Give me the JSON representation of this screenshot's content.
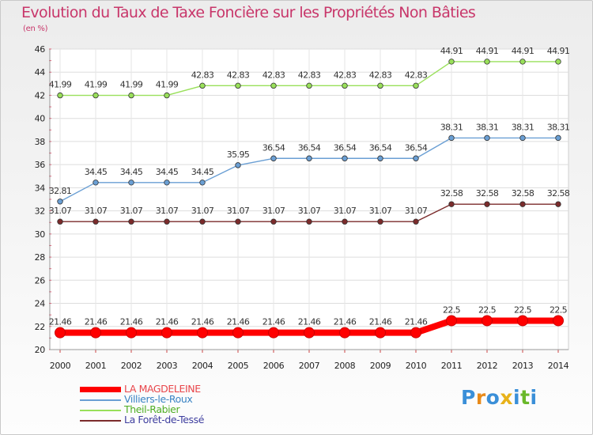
{
  "chart_data": {
    "type": "line",
    "title": "Evolution du Taux de Taxe Foncière sur les Propriétés Non Bâties",
    "ylabel": "(en %)",
    "xlabel": "",
    "x": [
      "2000",
      "2001",
      "2002",
      "2003",
      "2004",
      "2005",
      "2006",
      "2007",
      "2008",
      "2009",
      "2010",
      "2011",
      "2012",
      "2013",
      "2014"
    ],
    "ylim": [
      20,
      46
    ],
    "yticks": [
      20,
      22,
      24,
      26,
      28,
      30,
      32,
      34,
      36,
      38,
      40,
      42,
      44,
      46
    ],
    "grid": true,
    "series": [
      {
        "name": "LA MAGDELEINE",
        "color": "#ff0000",
        "values": [
          21.46,
          21.46,
          21.46,
          21.46,
          21.46,
          21.46,
          21.46,
          21.46,
          21.46,
          21.46,
          21.46,
          22.5,
          22.5,
          22.5,
          22.5
        ],
        "labels": [
          "21.46",
          "21.46",
          "21.46",
          "21.46",
          "21.46",
          "21.46",
          "21.46",
          "21.46",
          "21.46",
          "21.46",
          "21.46",
          "22.5",
          "22.5",
          "22.5",
          "22.5"
        ]
      },
      {
        "name": "Villiers-le-Roux",
        "color": "#6a9fd4",
        "values": [
          32.81,
          34.45,
          34.45,
          34.45,
          34.45,
          35.95,
          36.54,
          36.54,
          36.54,
          36.54,
          36.54,
          38.31,
          38.31,
          38.31,
          38.31
        ],
        "labels": [
          "32.81",
          "34.45",
          "34.45",
          "34.45",
          "34.45",
          "35.95",
          "36.54",
          "36.54",
          "36.54",
          "36.54",
          "36.54",
          "38.31",
          "38.31",
          "38.31",
          "38.31"
        ]
      },
      {
        "name": "Theil-Rabier",
        "color": "#99e05a",
        "values": [
          41.99,
          41.99,
          41.99,
          41.99,
          42.83,
          42.83,
          42.83,
          42.83,
          42.83,
          42.83,
          42.83,
          44.91,
          44.91,
          44.91,
          44.91
        ],
        "labels": [
          "41.99",
          "41.99",
          "41.99",
          "41.99",
          "42.83",
          "42.83",
          "42.83",
          "42.83",
          "42.83",
          "42.83",
          "42.83",
          "44.91",
          "44.91",
          "44.91",
          "44.91"
        ]
      },
      {
        "name": "La Forêt-de-Tessé",
        "color": "#7b2b2b",
        "values": [
          31.07,
          31.07,
          31.07,
          31.07,
          31.07,
          31.07,
          31.07,
          31.07,
          31.07,
          31.07,
          31.07,
          32.58,
          32.58,
          32.58,
          32.58
        ],
        "labels": [
          "31.07",
          "31.07",
          "31.07",
          "31.07",
          "31.07",
          "31.07",
          "31.07",
          "31.07",
          "31.07",
          "31.07",
          "31.07",
          "32.58",
          "32.58",
          "32.58",
          "32.58"
        ]
      }
    ]
  },
  "legend": {
    "items": [
      {
        "name": "LA MAGDELEINE",
        "color": "#ff0000",
        "text_color": "#e8454a"
      },
      {
        "name": "Villiers-le-Roux",
        "color": "#6a9fd4",
        "text_color": "#3b84c4"
      },
      {
        "name": "Theil-Rabier",
        "color": "#99e05a",
        "text_color": "#4fae24"
      },
      {
        "name": "La Forêt-de-Tessé",
        "color": "#7b2b2b",
        "text_color": "#3f3f9f"
      }
    ]
  },
  "logo": {
    "text": "Proxiti"
  }
}
